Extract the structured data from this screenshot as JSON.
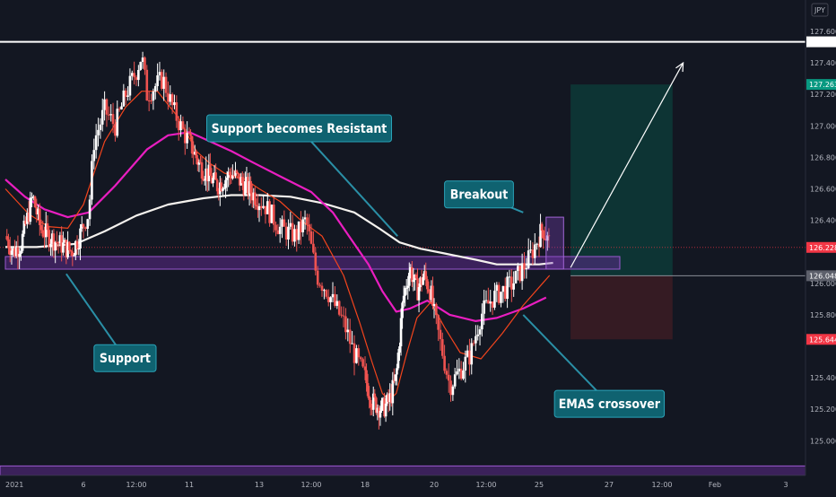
{
  "chart_data": {
    "type": "candlestick",
    "currency": "JPY",
    "y_axis": {
      "min": 124.85,
      "max": 127.7,
      "ticks": [
        {
          "value": 127.6,
          "label": "127.600"
        },
        {
          "value": 127.4,
          "label": "127.400"
        },
        {
          "value": 127.2,
          "label": "127.200"
        },
        {
          "value": 127.0,
          "label": "127.000"
        },
        {
          "value": 126.8,
          "label": "126.800"
        },
        {
          "value": 126.6,
          "label": "126.600"
        },
        {
          "value": 126.4,
          "label": "126.400"
        },
        {
          "value": 126.0,
          "label": "126.000"
        },
        {
          "value": 125.8,
          "label": "125.800"
        },
        {
          "value": 125.4,
          "label": "125.400"
        },
        {
          "value": 125.2,
          "label": "125.200"
        },
        {
          "value": 125.0,
          "label": "125.000"
        }
      ]
    },
    "x_axis": {
      "ticks": [
        {
          "label": "2021",
          "pos": 0
        },
        {
          "label": "6",
          "pos": 1
        },
        {
          "label": "12:00",
          "pos": 1.5
        },
        {
          "label": "11",
          "pos": 2
        },
        {
          "label": "13",
          "pos": 3
        },
        {
          "label": "12:00",
          "pos": 3.5
        },
        {
          "label": "18",
          "pos": 4
        },
        {
          "label": "20",
          "pos": 5
        },
        {
          "label": "12:00",
          "pos": 5.5
        },
        {
          "label": "25",
          "pos": 6
        },
        {
          "label": "27",
          "pos": 7
        },
        {
          "label": "12:00",
          "pos": 7.5
        },
        {
          "label": "Feb",
          "pos": 8
        },
        {
          "label": "3",
          "pos": 9
        }
      ]
    },
    "price_tags": [
      {
        "value": 127.534,
        "label": "127.534",
        "color": "#ffffff",
        "text_color": "#131722"
      },
      {
        "value": 127.263,
        "label": "127.263",
        "color": "#089981",
        "text_color": "#ffffff"
      },
      {
        "value": 126.228,
        "label": "126.228",
        "color": "#f23645",
        "text_color": "#ffffff"
      },
      {
        "value": 126.048,
        "label": "126.048",
        "color": "#5d606b",
        "text_color": "#ffffff"
      },
      {
        "value": 125.644,
        "label": "125.644",
        "color": "#f23645",
        "text_color": "#ffffff"
      }
    ],
    "resistance_level": 127.534,
    "support_zone": {
      "low": 126.09,
      "high": 126.17,
      "from": 0,
      "to": 10
    },
    "bottom_zone": {
      "low": 124.78,
      "high": 124.84
    },
    "breakout_box": {
      "low": 126.09,
      "high": 126.42,
      "from": 6.1,
      "to": 6.35
    },
    "position": {
      "entry": 126.048,
      "target": 127.263,
      "stop": 125.644,
      "from": 6.45,
      "to": 7.6
    },
    "forecast_arrow": {
      "from_pos": 6.45,
      "from_value": 126.1,
      "to_pos": 7.7,
      "to_value": 127.4
    },
    "annotations": [
      {
        "label": "Support",
        "box_pos": 1.1,
        "box_value": 125.61,
        "pointer_pos": 0.78,
        "pointer_value": 126.06
      },
      {
        "label": "Support becomes Resistant",
        "box_pos": 2.25,
        "box_value": 127.07,
        "pointer_pos": 4.47,
        "pointer_value": 126.3
      },
      {
        "label": "Breakout",
        "box_pos": 5.1,
        "box_value": 126.65,
        "pointer_pos": 5.85,
        "pointer_value": 126.45
      },
      {
        "label": "EMAS crossover",
        "box_pos": 6.22,
        "box_value": 125.32,
        "pointer_pos": 5.85,
        "pointer_value": 125.8
      }
    ],
    "candle_colors": {
      "up": "#ffffff",
      "down": "#ef5350"
    },
    "series": [
      {
        "kind": "ema_white",
        "color": "#f5f2ee",
        "points": [
          [
            0,
            126.23
          ],
          [
            0.4,
            126.23
          ],
          [
            0.9,
            126.25
          ],
          [
            1.2,
            126.33
          ],
          [
            1.5,
            126.43
          ],
          [
            1.8,
            126.5
          ],
          [
            2.2,
            126.54
          ],
          [
            2.6,
            126.56
          ],
          [
            3.0,
            126.56
          ],
          [
            3.3,
            126.55
          ],
          [
            3.6,
            126.51
          ],
          [
            3.9,
            126.45
          ],
          [
            4.2,
            126.35
          ],
          [
            4.5,
            126.26
          ],
          [
            4.8,
            126.22
          ],
          [
            5.1,
            126.19
          ],
          [
            5.4,
            126.15
          ],
          [
            5.6,
            126.12
          ],
          [
            5.8,
            126.12
          ],
          [
            6.0,
            126.12
          ],
          [
            6.2,
            126.13
          ]
        ]
      },
      {
        "kind": "ema_magenta",
        "color": "#e91ec0",
        "points": [
          [
            0,
            126.66
          ],
          [
            0.25,
            126.55
          ],
          [
            0.5,
            126.47
          ],
          [
            0.8,
            126.42
          ],
          [
            1.05,
            126.45
          ],
          [
            1.3,
            126.62
          ],
          [
            1.6,
            126.85
          ],
          [
            1.8,
            126.94
          ],
          [
            2.0,
            126.96
          ],
          [
            2.3,
            126.9
          ],
          [
            2.6,
            126.84
          ],
          [
            2.9,
            126.77
          ],
          [
            3.2,
            126.68
          ],
          [
            3.5,
            126.58
          ],
          [
            3.7,
            126.45
          ],
          [
            3.85,
            126.3
          ],
          [
            4.05,
            126.12
          ],
          [
            4.25,
            125.95
          ],
          [
            4.45,
            125.82
          ],
          [
            4.65,
            125.84
          ],
          [
            4.9,
            125.89
          ],
          [
            5.15,
            125.8
          ],
          [
            5.4,
            125.76
          ],
          [
            5.6,
            125.78
          ],
          [
            5.85,
            125.84
          ],
          [
            6.1,
            125.91
          ]
        ]
      },
      {
        "kind": "ema_orange",
        "color": "#f2441d",
        "points": [
          [
            0,
            126.6
          ],
          [
            0.3,
            126.44
          ],
          [
            0.55,
            126.36
          ],
          [
            0.8,
            126.35
          ],
          [
            1.0,
            126.5
          ],
          [
            1.2,
            126.9
          ],
          [
            1.4,
            127.12
          ],
          [
            1.55,
            127.22
          ],
          [
            1.7,
            127.22
          ],
          [
            1.9,
            127.05
          ],
          [
            2.1,
            126.84
          ],
          [
            2.3,
            126.76
          ],
          [
            2.5,
            126.7
          ],
          [
            2.8,
            126.66
          ],
          [
            3.0,
            126.6
          ],
          [
            3.2,
            126.52
          ],
          [
            3.4,
            126.4
          ],
          [
            3.6,
            126.3
          ],
          [
            3.8,
            126.05
          ],
          [
            3.95,
            125.75
          ],
          [
            4.1,
            125.5
          ],
          [
            4.25,
            125.3
          ],
          [
            4.35,
            125.26
          ],
          [
            4.45,
            125.3
          ],
          [
            4.6,
            125.55
          ],
          [
            4.75,
            125.78
          ],
          [
            4.95,
            125.88
          ],
          [
            5.1,
            125.72
          ],
          [
            5.25,
            125.56
          ],
          [
            5.45,
            125.52
          ],
          [
            5.65,
            125.68
          ],
          [
            5.85,
            125.86
          ],
          [
            6.05,
            126.0
          ],
          [
            6.15,
            126.05
          ]
        ]
      }
    ]
  }
}
